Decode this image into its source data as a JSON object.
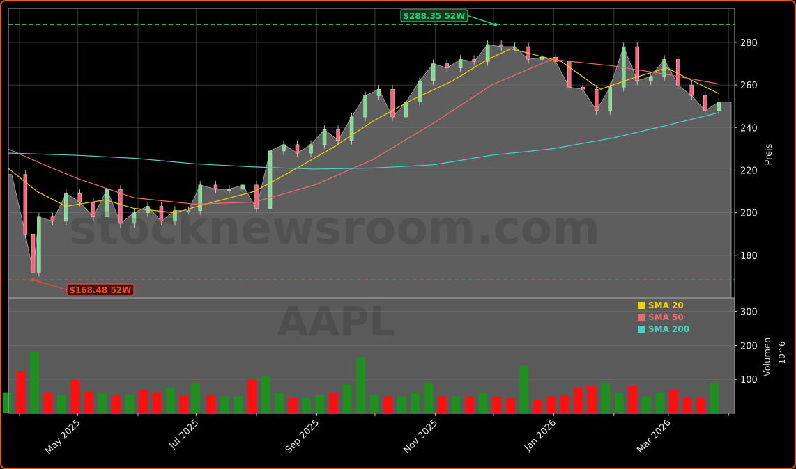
{
  "chart_data": [
    {
      "type": "line",
      "panel": "price",
      "ylabel": "Preis",
      "ylim": [
        160,
        296
      ],
      "yticks": [
        180,
        200,
        220,
        240,
        260,
        280
      ],
      "grid": true,
      "x": [
        "2025-03-28",
        "2025-04-04",
        "2025-04-08",
        "2025-04-11",
        "2025-04-18",
        "2025-04-25",
        "2025-05-02",
        "2025-05-09",
        "2025-05-16",
        "2025-05-23",
        "2025-05-30",
        "2025-06-06",
        "2025-06-13",
        "2025-06-20",
        "2025-06-27",
        "2025-07-03",
        "2025-07-11",
        "2025-07-18",
        "2025-07-25",
        "2025-08-01",
        "2025-08-08",
        "2025-08-15",
        "2025-08-22",
        "2025-08-29",
        "2025-09-05",
        "2025-09-12",
        "2025-09-19",
        "2025-09-26",
        "2025-10-03",
        "2025-10-10",
        "2025-10-17",
        "2025-10-24",
        "2025-10-31",
        "2025-11-07",
        "2025-11-14",
        "2025-11-21",
        "2025-11-28",
        "2025-12-05",
        "2025-12-12",
        "2025-12-19",
        "2025-12-26",
        "2026-01-02",
        "2026-01-09",
        "2026-01-16",
        "2026-01-23",
        "2026-01-30",
        "2026-02-06",
        "2026-02-13",
        "2026-02-20",
        "2026-02-27",
        "2026-03-06",
        "2026-03-13",
        "2026-03-20",
        "2026-03-27"
      ],
      "close": [
        218,
        190,
        172,
        198,
        196,
        209,
        205,
        198,
        211,
        195,
        200,
        203,
        196,
        201,
        201,
        213,
        211,
        211,
        213,
        202,
        229,
        232,
        228,
        232,
        239,
        234,
        245,
        255,
        258,
        245,
        252,
        262,
        270,
        268,
        272,
        271,
        279,
        278,
        278,
        272,
        273,
        271,
        259,
        258,
        248,
        259,
        278,
        262,
        264,
        272,
        260,
        255,
        248,
        252
      ],
      "series": [
        {
          "name": "SMA 20",
          "color": "#f5d000",
          "x": [
            "2025-03-26",
            "2025-04-10",
            "2025-04-25",
            "2025-05-15",
            "2025-05-30",
            "2025-06-20",
            "2025-07-10",
            "2025-07-31",
            "2025-08-20",
            "2025-09-10",
            "2025-09-30",
            "2025-10-20",
            "2025-11-10",
            "2025-11-28",
            "2025-12-10",
            "2026-01-05",
            "2026-01-25",
            "2026-02-10",
            "2026-02-28",
            "2026-03-27"
          ],
          "values": [
            221,
            210,
            203,
            206,
            202,
            200,
            205,
            210,
            220,
            231,
            243,
            253,
            262,
            272,
            277,
            271,
            258,
            263,
            268,
            256
          ]
        },
        {
          "name": "SMA 50",
          "color": "#f26b6b",
          "x": [
            "2025-03-26",
            "2025-04-15",
            "2025-05-01",
            "2025-05-30",
            "2025-06-30",
            "2025-07-31",
            "2025-08-31",
            "2025-09-30",
            "2025-10-31",
            "2025-11-30",
            "2025-12-31",
            "2026-01-31",
            "2026-02-28",
            "2026-03-27"
          ],
          "values": [
            230,
            222,
            216,
            207,
            204,
            205,
            213,
            225,
            242,
            260,
            272,
            269,
            265,
            260.5
          ]
        },
        {
          "name": "SMA 200",
          "color": "#4fd0c8",
          "x": [
            "2025-03-26",
            "2025-04-30",
            "2025-05-31",
            "2025-06-30",
            "2025-07-31",
            "2025-08-31",
            "2025-09-30",
            "2025-10-31",
            "2025-11-30",
            "2025-12-31",
            "2026-01-31",
            "2026-02-28",
            "2026-03-27"
          ],
          "values": [
            228,
            227,
            225.5,
            223,
            221.5,
            220.5,
            221,
            222.5,
            227,
            230,
            235,
            241,
            247
          ]
        }
      ],
      "annotations": [
        {
          "text": "$288.35 52W",
          "value": 288.35,
          "date": "2025-12-02",
          "color": "#2ecc71"
        },
        {
          "text": "$168.48 52W",
          "value": 168.48,
          "date": "2025-04-08",
          "color": "#e74c3c"
        }
      ],
      "watermark": "stocknewsroom.com",
      "legend": {
        "placement": "top-right-of-volume-panel",
        "entries": [
          "SMA 20",
          "SMA 50",
          "SMA 200"
        ]
      }
    },
    {
      "type": "bar",
      "panel": "volume",
      "ylabel": "Volumen",
      "yunit": "10^6",
      "ylim": [
        0,
        340
      ],
      "yticks": [
        100,
        200,
        300
      ],
      "watermark": "AAPL",
      "x": [
        "2025-03-28",
        "2025-04-04",
        "2025-04-11",
        "2025-04-18",
        "2025-04-25",
        "2025-05-02",
        "2025-05-09",
        "2025-05-16",
        "2025-05-23",
        "2025-05-30",
        "2025-06-06",
        "2025-06-13",
        "2025-06-20",
        "2025-06-27",
        "2025-07-03",
        "2025-07-11",
        "2025-07-18",
        "2025-07-25",
        "2025-08-01",
        "2025-08-08",
        "2025-08-15",
        "2025-08-22",
        "2025-08-29",
        "2025-09-05",
        "2025-09-12",
        "2025-09-19",
        "2025-09-26",
        "2025-10-03",
        "2025-10-10",
        "2025-10-17",
        "2025-10-24",
        "2025-10-31",
        "2025-11-07",
        "2025-11-14",
        "2025-11-21",
        "2025-11-28",
        "2025-12-05",
        "2025-12-12",
        "2025-12-19",
        "2025-12-26",
        "2026-01-02",
        "2026-01-09",
        "2026-01-16",
        "2026-01-23",
        "2026-01-30",
        "2026-02-06",
        "2026-02-13",
        "2026-02-20",
        "2026-02-27",
        "2026-03-06",
        "2026-03-13",
        "2026-03-20",
        "2026-03-27"
      ],
      "values": [
        60,
        125,
        180,
        60,
        55,
        100,
        65,
        60,
        55,
        55,
        70,
        60,
        75,
        55,
        90,
        55,
        50,
        50,
        100,
        110,
        60,
        45,
        45,
        55,
        60,
        85,
        165,
        55,
        50,
        50,
        60,
        90,
        50,
        50,
        50,
        60,
        50,
        45,
        140,
        40,
        50,
        55,
        75,
        80,
        90,
        60,
        80,
        50,
        60,
        70,
        45,
        45,
        90
      ],
      "up": [
        true,
        false,
        true,
        false,
        true,
        false,
        false,
        true,
        false,
        true,
        false,
        false,
        true,
        false,
        true,
        false,
        true,
        true,
        false,
        true,
        true,
        false,
        true,
        true,
        false,
        true,
        true,
        true,
        false,
        true,
        true,
        true,
        false,
        true,
        false,
        true,
        false,
        false,
        true,
        false,
        false,
        false,
        false,
        false,
        true,
        true,
        false,
        true,
        true,
        false,
        false,
        false,
        true
      ]
    }
  ],
  "xaxis": {
    "tick_labels": [
      "May 2025",
      "Jul 2025",
      "Sep 2025",
      "Nov 2025",
      "Jan 2026",
      "Mar 2026"
    ]
  }
}
